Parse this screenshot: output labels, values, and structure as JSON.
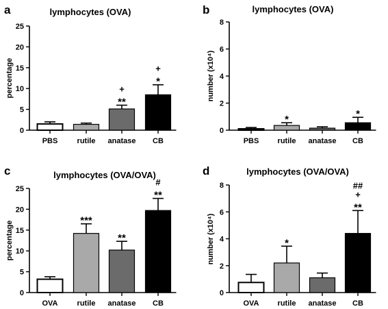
{
  "chart_data": [
    {
      "panel": "a",
      "type": "bar",
      "title": "lymphocytes (OVA)",
      "ylabel": "percentage",
      "ylim": [
        0,
        25
      ],
      "yticks": [
        "0",
        "5",
        "10",
        "15",
        "20",
        "25"
      ],
      "categories": [
        "PBS",
        "rutile",
        "anatase",
        "CB"
      ],
      "values": [
        1.5,
        1.4,
        5.1,
        8.5
      ],
      "errors": [
        0.5,
        0.3,
        0.9,
        2.4
      ],
      "fills": [
        "#ffffff",
        "#a9a9a9",
        "#6b6b6b",
        "#000000"
      ],
      "annotations": [
        [],
        [],
        [
          "+",
          "**"
        ],
        [
          "+",
          "*"
        ]
      ]
    },
    {
      "panel": "b",
      "type": "bar",
      "title": "lymphocytes (OVA)",
      "ylabel": "number (x10⁴)",
      "ylim": [
        0,
        8
      ],
      "yticks": [
        "0",
        "2",
        "4",
        "6",
        "8"
      ],
      "categories": [
        "PBS",
        "rutile",
        "anatase",
        "CB"
      ],
      "values": [
        0.1,
        0.35,
        0.15,
        0.55
      ],
      "errors": [
        0.1,
        0.2,
        0.1,
        0.4
      ],
      "fills": [
        "#ffffff",
        "#a9a9a9",
        "#6b6b6b",
        "#000000"
      ],
      "annotations": [
        [],
        [
          "*"
        ],
        [],
        [
          "*"
        ]
      ]
    },
    {
      "panel": "c",
      "type": "bar",
      "title": "lymphocytes (OVA/OVA)",
      "ylabel": "percentage",
      "ylim": [
        0,
        25
      ],
      "yticks": [
        "0",
        "5",
        "10",
        "15",
        "20",
        "25"
      ],
      "categories": [
        "OVA",
        "rutile",
        "anatase",
        "CB"
      ],
      "values": [
        3.2,
        14.2,
        10.2,
        19.7
      ],
      "errors": [
        0.6,
        2.3,
        2.1,
        2.9
      ],
      "fills": [
        "#ffffff",
        "#a9a9a9",
        "#6b6b6b",
        "#000000"
      ],
      "annotations": [
        [],
        [
          "***"
        ],
        [
          "**"
        ],
        [
          "#",
          "**"
        ]
      ]
    },
    {
      "panel": "d",
      "type": "bar",
      "title": "lymphocytes (OVA/OVA)",
      "ylabel": "number (x10⁴)",
      "ylim": [
        0,
        8
      ],
      "yticks": [
        "0",
        "2",
        "4",
        "6",
        "8"
      ],
      "categories": [
        "OVA",
        "rutile",
        "anatase",
        "CB"
      ],
      "values": [
        0.75,
        2.2,
        1.1,
        4.4
      ],
      "errors": [
        0.6,
        1.25,
        0.35,
        1.7
      ],
      "fills": [
        "#ffffff",
        "#a9a9a9",
        "#6b6b6b",
        "#000000"
      ],
      "annotations": [
        [],
        [
          "*"
        ],
        [],
        [
          "##",
          "+",
          "**"
        ]
      ]
    }
  ]
}
